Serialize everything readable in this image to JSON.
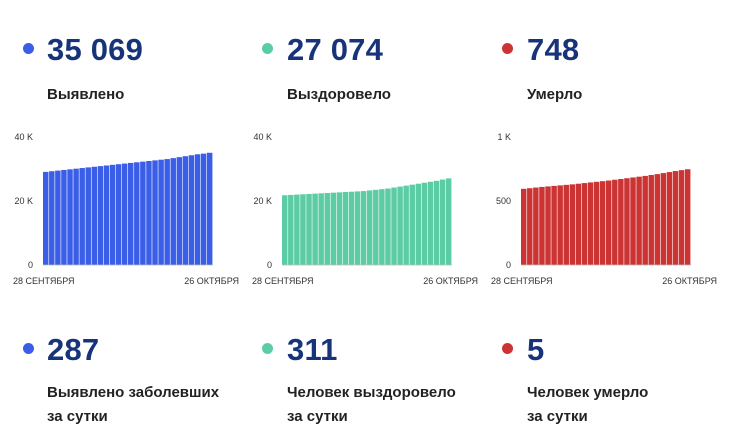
{
  "metrics": [
    {
      "value": "35 069",
      "label": "Выявлено",
      "color": "#3b5ee8"
    },
    {
      "value": "27 074",
      "label": "Выздоровело",
      "color": "#5ccca4"
    },
    {
      "value": "748",
      "label": "Умерло",
      "color": "#cc3333"
    }
  ],
  "daily": [
    {
      "value": "287",
      "label_line1": "Выявлено заболевших",
      "label_line2": "за сутки",
      "color": "#3b5ee8"
    },
    {
      "value": "311",
      "label_line1": "Человек выздоровело",
      "label_line2": "за сутки",
      "color": "#5ccca4"
    },
    {
      "value": "5",
      "label_line1": "Человек умерло",
      "label_line2": "за сутки",
      "color": "#cc3333"
    }
  ],
  "chart_data": [
    {
      "type": "bar",
      "color": "#3b5ee8",
      "x_start_label": "28 СЕНТЯБРЯ",
      "x_end_label": "26 ОКТЯБРЯ",
      "yticks": [
        "40 K",
        "20 K",
        "0"
      ],
      "ylim": [
        0,
        40000
      ],
      "values": [
        29100,
        29300,
        29500,
        29700,
        29900,
        30100,
        30300,
        30500,
        30700,
        30900,
        31100,
        31300,
        31500,
        31700,
        31900,
        32100,
        32300,
        32500,
        32700,
        32900,
        33100,
        33400,
        33700,
        34000,
        34300,
        34600,
        34800,
        35069
      ]
    },
    {
      "type": "bar",
      "color": "#5ccca4",
      "x_start_label": "28 СЕНТЯБРЯ",
      "x_end_label": "26 ОКТЯБРЯ",
      "yticks": [
        "40 K",
        "20 K",
        "0"
      ],
      "ylim": [
        0,
        40000
      ],
      "values": [
        21800,
        21900,
        22000,
        22100,
        22200,
        22300,
        22400,
        22500,
        22600,
        22700,
        22800,
        22900,
        23000,
        23100,
        23300,
        23500,
        23700,
        23900,
        24200,
        24500,
        24800,
        25100,
        25400,
        25700,
        26000,
        26300,
        26700,
        27074
      ]
    },
    {
      "type": "bar",
      "color": "#cc3333",
      "x_start_label": "28 СЕНТЯБРЯ",
      "x_end_label": "26 ОКТЯБРЯ",
      "yticks": [
        "1 K",
        "500",
        "0"
      ],
      "ylim": [
        0,
        1000
      ],
      "values": [
        595,
        600,
        605,
        610,
        614,
        618,
        622,
        626,
        630,
        635,
        640,
        645,
        650,
        655,
        660,
        666,
        672,
        678,
        684,
        690,
        696,
        703,
        710,
        718,
        726,
        734,
        741,
        748
      ]
    }
  ]
}
